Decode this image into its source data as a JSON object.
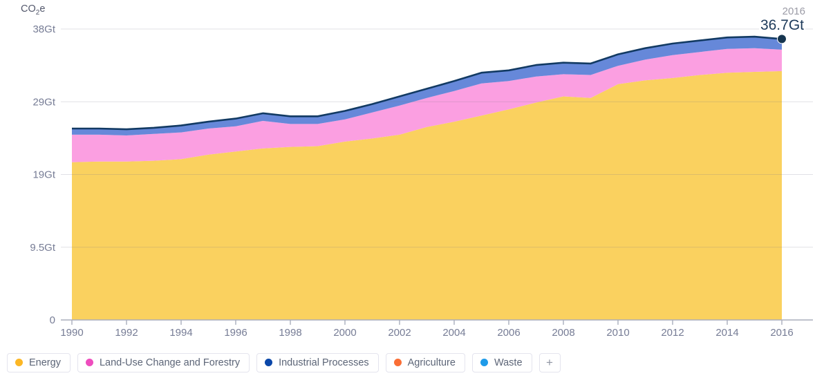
{
  "header": {
    "unit_prefix": "CO",
    "unit_sub": "2",
    "unit_suffix": "e"
  },
  "annotation": {
    "year": "2016",
    "value": "36.7Gt"
  },
  "chart_data": {
    "type": "area",
    "stacked": true,
    "ylabel": "CO2e",
    "xlim": [
      1990,
      2016
    ],
    "ylim": [
      0,
      38
    ],
    "grid": true,
    "legend_position": "bottom",
    "x": [
      1990,
      1991,
      1992,
      1993,
      1994,
      1995,
      1996,
      1997,
      1998,
      1999,
      2000,
      2001,
      2002,
      2003,
      2004,
      2005,
      2006,
      2007,
      2008,
      2009,
      2010,
      2011,
      2012,
      2013,
      2014,
      2015,
      2016
    ],
    "series": [
      {
        "name": "Energy",
        "fill": "#fad15f",
        "values": [
          20.6,
          20.7,
          20.7,
          20.8,
          21.0,
          21.6,
          22.0,
          22.4,
          22.6,
          22.7,
          23.3,
          23.7,
          24.2,
          25.2,
          25.9,
          26.7,
          27.5,
          28.4,
          29.2,
          29.0,
          30.8,
          31.3,
          31.6,
          32.0,
          32.3,
          32.4,
          32.5
        ]
      },
      {
        "name": "Land-Use Change and Forestry",
        "fill": "#fb9fe1",
        "values": [
          3.6,
          3.5,
          3.4,
          3.5,
          3.5,
          3.4,
          3.3,
          3.6,
          3.0,
          2.9,
          2.9,
          3.4,
          3.8,
          3.8,
          4.0,
          4.2,
          3.7,
          3.4,
          2.9,
          3.0,
          2.4,
          2.7,
          3.0,
          3.0,
          3.1,
          3.1,
          2.8
        ]
      },
      {
        "name": "Industrial Processes",
        "fill": "#6688d9",
        "values": [
          0.8,
          0.8,
          0.8,
          0.8,
          0.9,
          0.9,
          1.0,
          1.0,
          1.0,
          1.0,
          1.1,
          1.1,
          1.2,
          1.2,
          1.3,
          1.4,
          1.4,
          1.5,
          1.5,
          1.5,
          1.5,
          1.5,
          1.5,
          1.5,
          1.5,
          1.5,
          1.4
        ]
      }
    ],
    "total_2016": 36.7,
    "line_color": "#123a63",
    "end_dot_color": "#16354f",
    "xticks": [
      1990,
      1992,
      1994,
      1996,
      1998,
      2000,
      2002,
      2004,
      2006,
      2008,
      2010,
      2012,
      2014,
      2016
    ],
    "yticks": [
      {
        "value": 0,
        "label": "0"
      },
      {
        "value": 9.5,
        "label": "9.5Gt"
      },
      {
        "value": 19,
        "label": "19Gt"
      },
      {
        "value": 28.5,
        "label": "29Gt"
      },
      {
        "value": 38,
        "label": "38Gt"
      }
    ]
  },
  "legend": {
    "items": [
      {
        "label": "Energy",
        "dot_color": "#fcb725",
        "in_chart": true
      },
      {
        "label": "Land-Use Change and Forestry",
        "dot_color": "#ee4dbe",
        "in_chart": true
      },
      {
        "label": "Industrial Processes",
        "dot_color": "#0a47a9",
        "in_chart": true
      },
      {
        "label": "Agriculture",
        "dot_color": "#fa6e35",
        "in_chart": false
      },
      {
        "label": "Waste",
        "dot_color": "#1e9be9",
        "in_chart": false
      }
    ],
    "add_button_label": "+"
  },
  "colors": {
    "background": "#ffffff",
    "gridline": "rgba(120,120,140,0.22)",
    "axis_line": "#a9adbb",
    "tick_label": "#767c95"
  }
}
